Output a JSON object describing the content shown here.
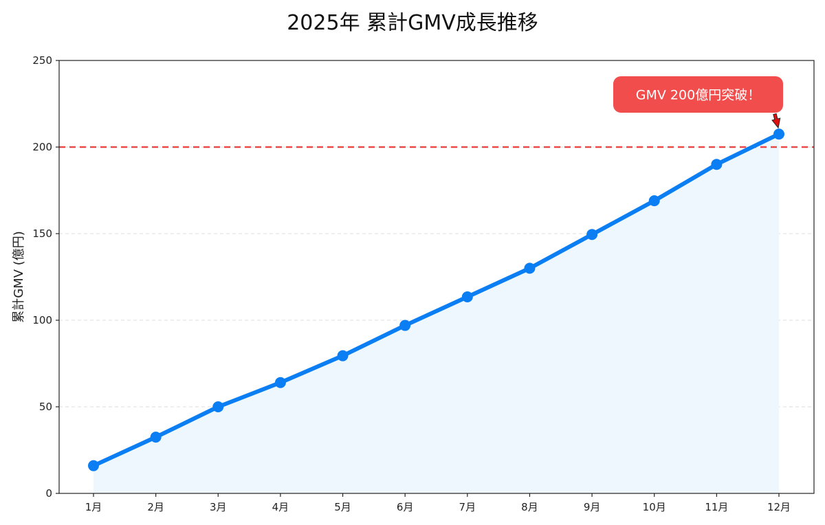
{
  "chart_data": {
    "type": "line",
    "title": "2025年 累計GMV成長推移",
    "xlabel": "",
    "ylabel": "累計GMV (億円)",
    "categories": [
      "1月",
      "2月",
      "3月",
      "4月",
      "5月",
      "6月",
      "7月",
      "8月",
      "9月",
      "10月",
      "11月",
      "12月"
    ],
    "series": [
      {
        "values": [
          16,
          32.5,
          50,
          64,
          79.5,
          97,
          113.5,
          130,
          149.5,
          169,
          190,
          207.5
        ],
        "color": "#0a7ef2"
      }
    ],
    "ylim": [
      0,
      250
    ],
    "yticks": [
      0,
      50,
      100,
      150,
      200,
      250
    ],
    "grid": "y-dashed",
    "area_fill": "#eef7fd",
    "reference_line": {
      "y": 200,
      "color": "#e84a4a",
      "style": "dashed"
    },
    "annotation": {
      "text": "GMV 200億円突破！",
      "target_category": "12月",
      "target_value": 207.5,
      "background": "#f24d4d",
      "arrow_color": "#e01010"
    }
  }
}
